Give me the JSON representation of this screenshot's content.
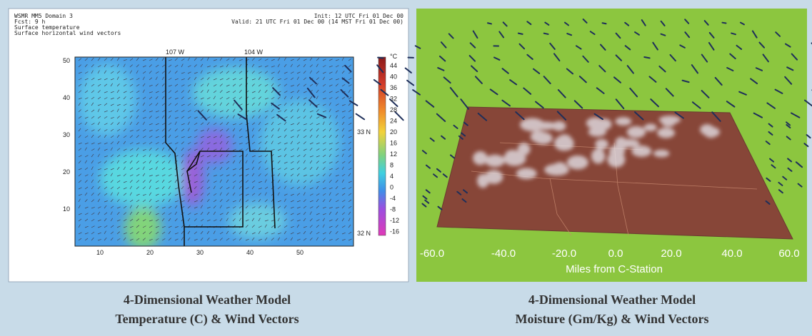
{
  "left_panel": {
    "header_left": [
      "WSMR MM5 Domain 3",
      "Fcst: 9 h",
      "Surface temperature",
      "Surface horizontal wind vectors"
    ],
    "header_right": [
      "Init: 12 UTC Fri 01 Dec 00",
      "Valid: 21 UTC Fri 01 Dec 00 (14 MST Fri 01 Dec 00)"
    ],
    "lon_labels": [
      "107 W",
      "104 W"
    ],
    "lat_labels": [
      "33 N",
      "32 N"
    ],
    "x_labels": [
      "10",
      "20",
      "30",
      "40",
      "50"
    ],
    "y_labels": [
      "50",
      "40",
      "30",
      "20",
      "10"
    ],
    "colorbar_unit": "°C",
    "colorbar_labels": [
      "44",
      "40",
      "36",
      "32",
      "28",
      "24",
      "20",
      "16",
      "12",
      "8",
      "4",
      "0",
      "-4",
      "-8",
      "-12",
      "-16"
    ]
  },
  "right_panel": {
    "x_labels": [
      "-60.0",
      "-40.0",
      "-20.0",
      "0.0",
      "20.0",
      "40.0",
      "60.0"
    ],
    "x_title": "Miles from C-Station"
  },
  "captions": [
    {
      "line1": "4-Dimensional Weather Model",
      "line2": "Temperature (C) & Wind Vectors"
    },
    {
      "line1": "4-Dimensional Weather Model",
      "line2": "Moisture (Gm/Kg) & Wind Vectors"
    }
  ]
}
